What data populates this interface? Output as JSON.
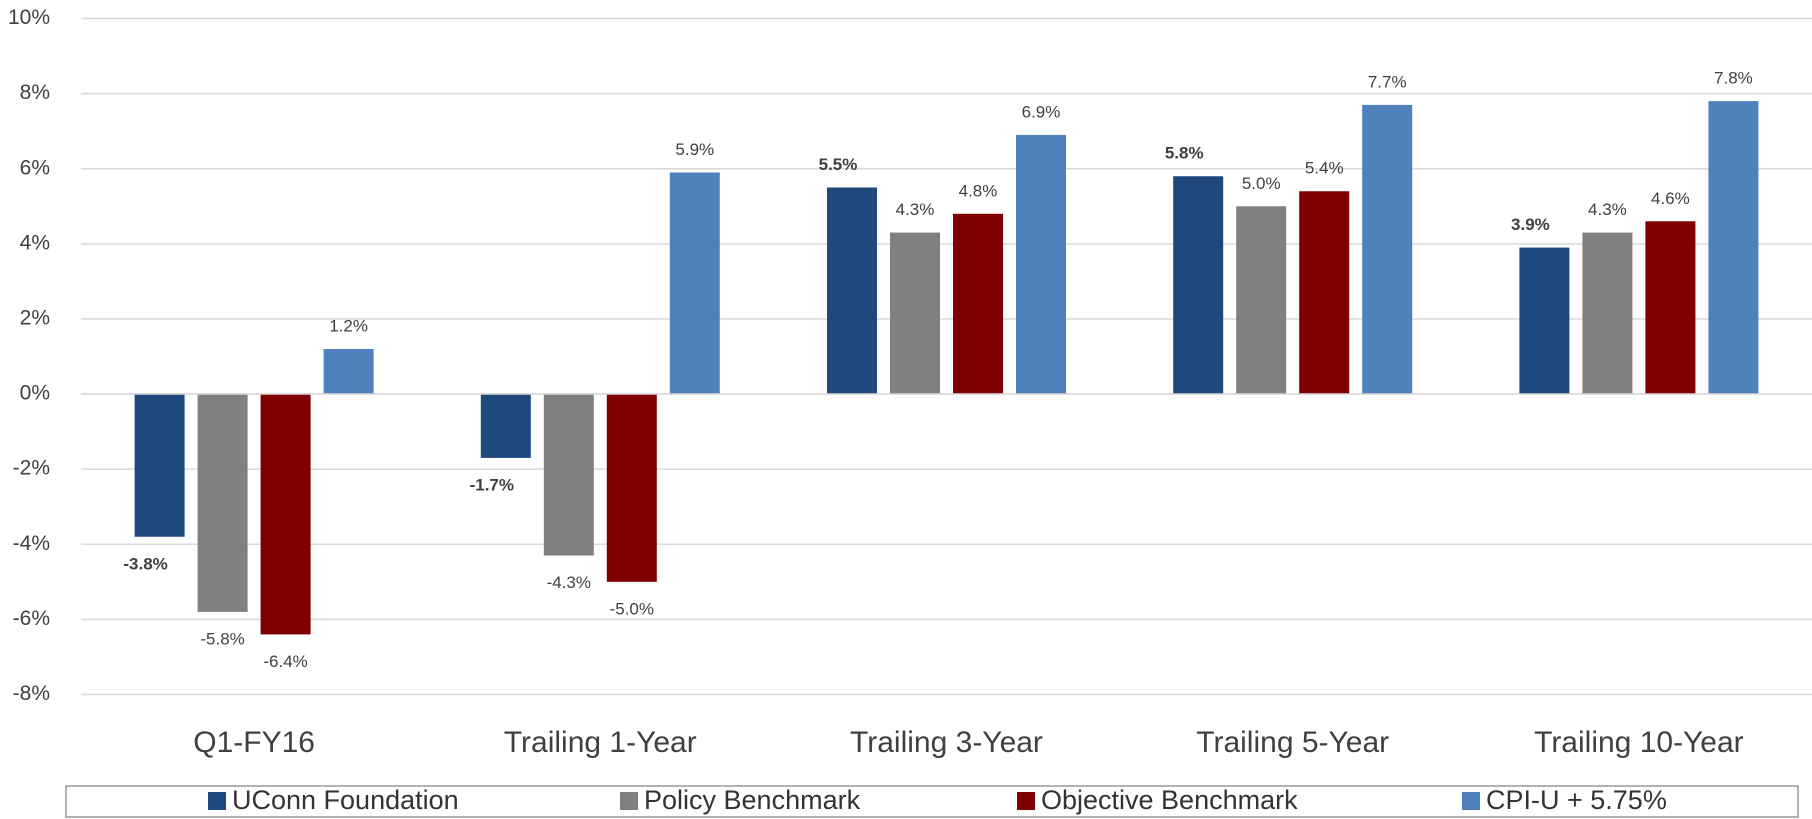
{
  "chart_data": {
    "type": "bar",
    "categories": [
      "Q1-FY16",
      "Trailing 1-Year",
      "Trailing 3-Year",
      "Trailing 5-Year",
      "Trailing 10-Year"
    ],
    "series": [
      {
        "name": "UConn Foundation",
        "color": "#1f497d",
        "values": [
          -3.8,
          -1.7,
          5.5,
          5.8,
          3.9
        ],
        "value_labels": [
          "-3.8%",
          "-1.7%",
          "5.5%",
          "5.8%",
          "3.9%"
        ]
      },
      {
        "name": "Policy Benchmark",
        "color": "#808080",
        "values": [
          -5.8,
          -4.3,
          4.3,
          5.0,
          4.3
        ],
        "value_labels": [
          "-5.8%",
          "-4.3%",
          "4.3%",
          "5.0%",
          "4.3%"
        ]
      },
      {
        "name": "Objective Benchmark",
        "color": "#7f0000",
        "values": [
          -6.4,
          -5.0,
          4.8,
          5.4,
          4.6
        ],
        "value_labels": [
          "-6.4%",
          "-5.0%",
          "4.8%",
          "5.4%",
          "4.6%"
        ]
      },
      {
        "name": "CPI-U + 5.75%",
        "color": "#4f81bd",
        "values": [
          1.2,
          5.9,
          6.9,
          7.7,
          7.8
        ],
        "value_labels": [
          "1.2%",
          "5.9%",
          "6.9%",
          "7.7%",
          "7.8%"
        ]
      }
    ],
    "ylim": [
      -8,
      10
    ],
    "yticks": [
      {
        "value": -8,
        "label": "-8%"
      },
      {
        "value": -6,
        "label": "-6%"
      },
      {
        "value": -4,
        "label": "-4%"
      },
      {
        "value": -2,
        "label": "-2%"
      },
      {
        "value": 0,
        "label": "0%"
      },
      {
        "value": 2,
        "label": "2%"
      },
      {
        "value": 4,
        "label": "4%"
      },
      {
        "value": 6,
        "label": "6%"
      },
      {
        "value": 8,
        "label": "8%"
      },
      {
        "value": 10,
        "label": "10%"
      }
    ],
    "grid": true,
    "legend": "bottom"
  }
}
